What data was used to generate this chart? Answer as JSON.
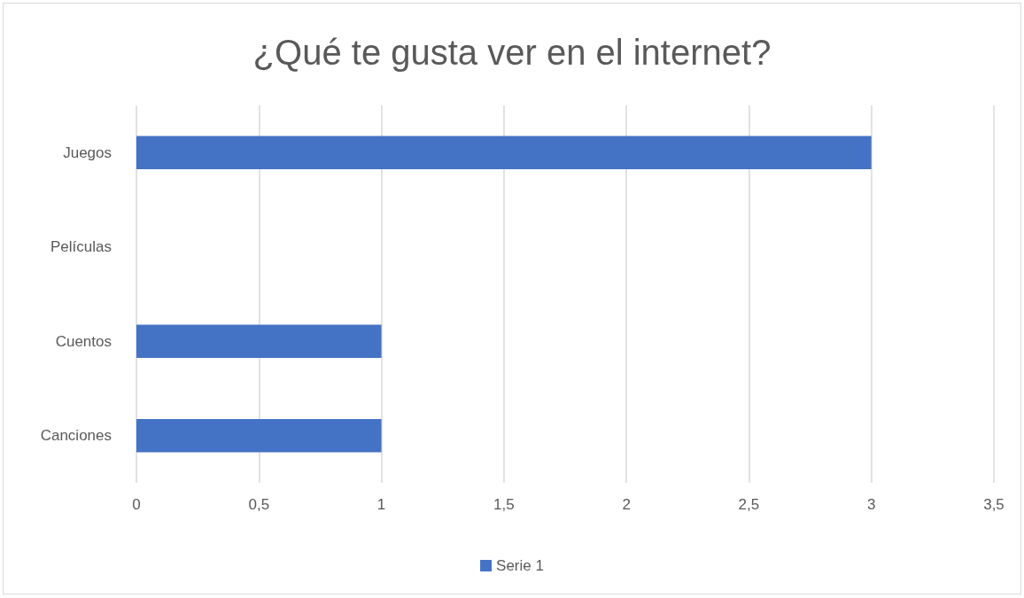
{
  "chart_data": {
    "type": "bar",
    "orientation": "horizontal",
    "title": "¿Qué te gusta ver en el internet?",
    "categories": [
      "Juegos",
      "Películas",
      "Cuentos",
      "Canciones"
    ],
    "series": [
      {
        "name": "Serie 1",
        "color": "#4472c4",
        "values": [
          3,
          0,
          1,
          1
        ]
      }
    ],
    "xlim": [
      0,
      3.5
    ],
    "xticks": [
      0,
      {
        "value": 0.5,
        "label": "0,5"
      },
      1,
      {
        "value": 1.5,
        "label": "1,5"
      },
      2,
      {
        "value": 2.5,
        "label": "2,5"
      },
      3,
      {
        "value": 3.5,
        "label": "3,5"
      }
    ],
    "grid": "x",
    "legend": "bottom"
  }
}
